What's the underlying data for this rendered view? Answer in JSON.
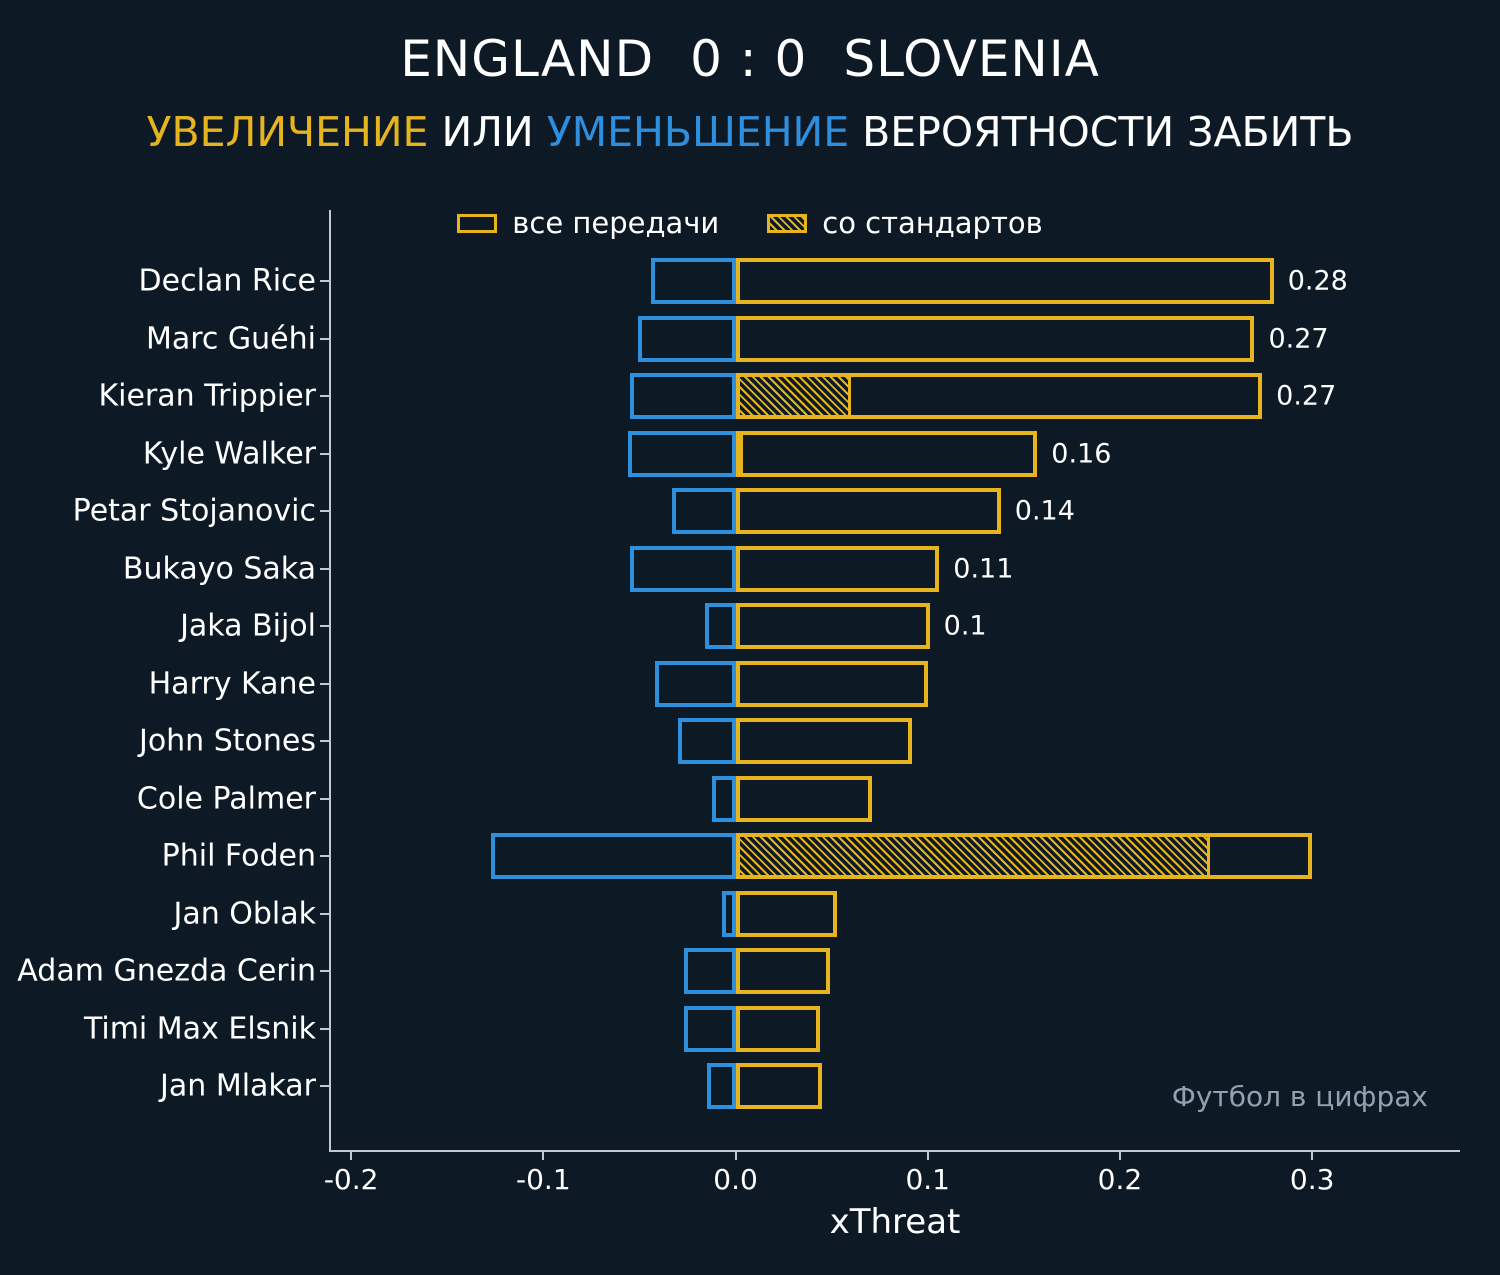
{
  "title": {
    "home": "ENGLAND",
    "score": "0 : 0",
    "away": "SLOVENIA"
  },
  "subtitle": {
    "increase": "УВЕЛИЧЕНИЕ",
    "conjunction": " ИЛИ ",
    "decrease": "УМЕНЬШЕНИЕ",
    "tail": " ВЕРОЯТНОСТИ ЗАБИТЬ"
  },
  "legend": [
    {
      "label": "все передачи",
      "style": "outline"
    },
    {
      "label": "со стандартов",
      "style": "hatch"
    }
  ],
  "watermark": "Футбол в цифрах",
  "colors": {
    "background": "#0d1a26",
    "positive": "#e5b41f",
    "negative": "#2f8fdf",
    "axis": "#c3c9cf",
    "text": "#ffffff",
    "watermark_text": "#94a0ad"
  },
  "chart_data": {
    "type": "bar",
    "orientation": "horizontal",
    "xlabel": "xThreat",
    "xlim": [
      -0.211,
      0.377
    ],
    "grid": false,
    "legend_position": "top-center",
    "x_ticks": [
      {
        "value": -0.2,
        "label": "-0.2"
      },
      {
        "value": -0.1,
        "label": "-0.1"
      },
      {
        "value": 0.0,
        "label": "0.0"
      },
      {
        "value": 0.1,
        "label": "0.1"
      },
      {
        "value": 0.2,
        "label": "0.2"
      },
      {
        "value": 0.3,
        "label": "0.3"
      }
    ],
    "series_meaning": {
      "positive": "увеличение вероятности забить (все передачи)",
      "set_piece": "со стандартов",
      "negative": "уменьшение вероятности забить"
    },
    "players": [
      {
        "name": "Declan Rice",
        "positive": 0.28,
        "set_piece": 0,
        "negative": -0.044,
        "label": "0.28"
      },
      {
        "name": "Marc Guéhi",
        "positive": 0.27,
        "set_piece": 0,
        "negative": -0.051,
        "label": "0.27"
      },
      {
        "name": "Kieran Trippier",
        "positive": 0.274,
        "set_piece": 0.06,
        "negative": -0.055,
        "label": "0.27"
      },
      {
        "name": "Kyle Walker",
        "positive": 0.157,
        "set_piece": 0.004,
        "negative": -0.056,
        "label": "0.16"
      },
      {
        "name": "Petar Stojanovic",
        "positive": 0.138,
        "set_piece": 0,
        "negative": -0.033,
        "label": "0.14"
      },
      {
        "name": "Bukayo Saka",
        "positive": 0.106,
        "set_piece": 0,
        "negative": -0.055,
        "label": "0.11"
      },
      {
        "name": "Jaka Bijol",
        "positive": 0.101,
        "set_piece": 0,
        "negative": -0.016,
        "label": "0.1"
      },
      {
        "name": "Harry Kane",
        "positive": 0.1,
        "set_piece": 0,
        "negative": -0.042,
        "label": ""
      },
      {
        "name": "John Stones",
        "positive": 0.092,
        "set_piece": 0,
        "negative": -0.03,
        "label": ""
      },
      {
        "name": "Cole Palmer",
        "positive": 0.071,
        "set_piece": 0,
        "negative": -0.012,
        "label": ""
      },
      {
        "name": "Phil Foden",
        "positive": 0.3,
        "set_piece": 0.247,
        "negative": -0.127,
        "label": ""
      },
      {
        "name": "Jan Oblak",
        "positive": 0.053,
        "set_piece": 0,
        "negative": -0.007,
        "label": ""
      },
      {
        "name": "Adam Gnezda Cerin",
        "positive": 0.049,
        "set_piece": 0,
        "negative": -0.027,
        "label": ""
      },
      {
        "name": "Timi Max Elsnik",
        "positive": 0.044,
        "set_piece": 0,
        "negative": -0.027,
        "label": ""
      },
      {
        "name": "Jan Mlakar",
        "positive": 0.045,
        "set_piece": 0,
        "negative": -0.015,
        "label": ""
      }
    ]
  }
}
